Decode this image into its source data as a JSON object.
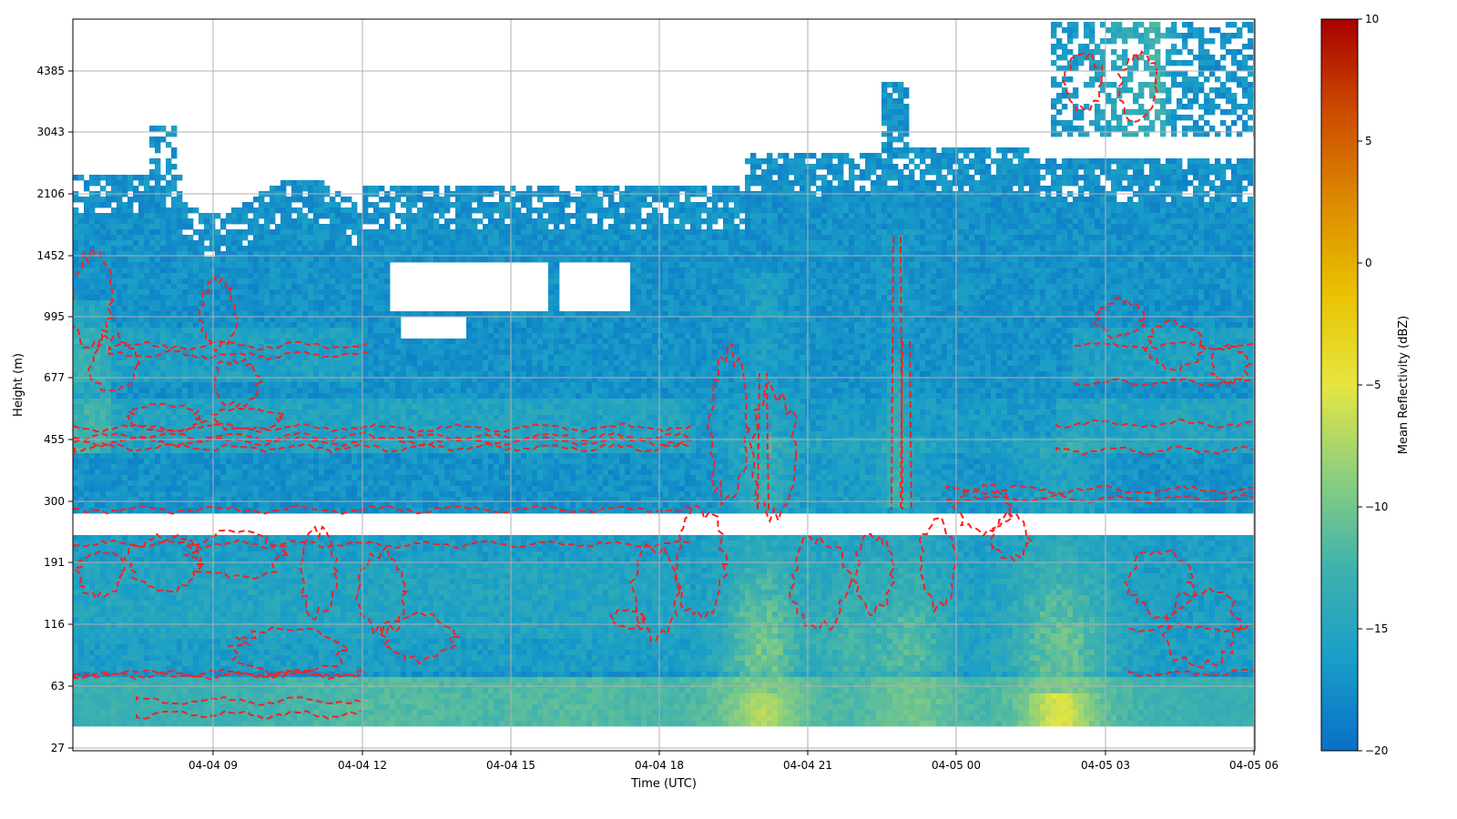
{
  "chart_data": {
    "type": "heatmap",
    "title": "",
    "xlabel": "Time (UTC)",
    "ylabel": "Height (m)",
    "x_ticks": [
      "04-04 09",
      "04-04 12",
      "04-04 15",
      "04-04 18",
      "04-04 21",
      "04-05 00",
      "04-05 03",
      "04-05 06"
    ],
    "x_range_hours": [
      -1.4,
      22.4
    ],
    "y_ticks": [
      "27",
      "63",
      "116",
      "191",
      "300",
      "455",
      "677",
      "995",
      "1452",
      "2106",
      "3043",
      "4385"
    ],
    "colorbar": {
      "label": "Mean Reflectivity (dBZ)",
      "range": [
        -20,
        10
      ],
      "ticks": [
        "10",
        "5",
        "0",
        "−5",
        "−10",
        "−15",
        "−20"
      ],
      "colormap": [
        "#0a6fc8",
        "#199ec8",
        "#3fb2ae",
        "#8ccf7e",
        "#e6e640",
        "#e8c200",
        "#dd8a00",
        "#cc4a00",
        "#a80000"
      ]
    },
    "contour_color": "#ff2020",
    "contour_style": "dashed",
    "grid": true,
    "description_free_features": {
      "gap_band_height_m": [
        250,
        280
      ],
      "bottom_blank_below_m": 40
    }
  }
}
